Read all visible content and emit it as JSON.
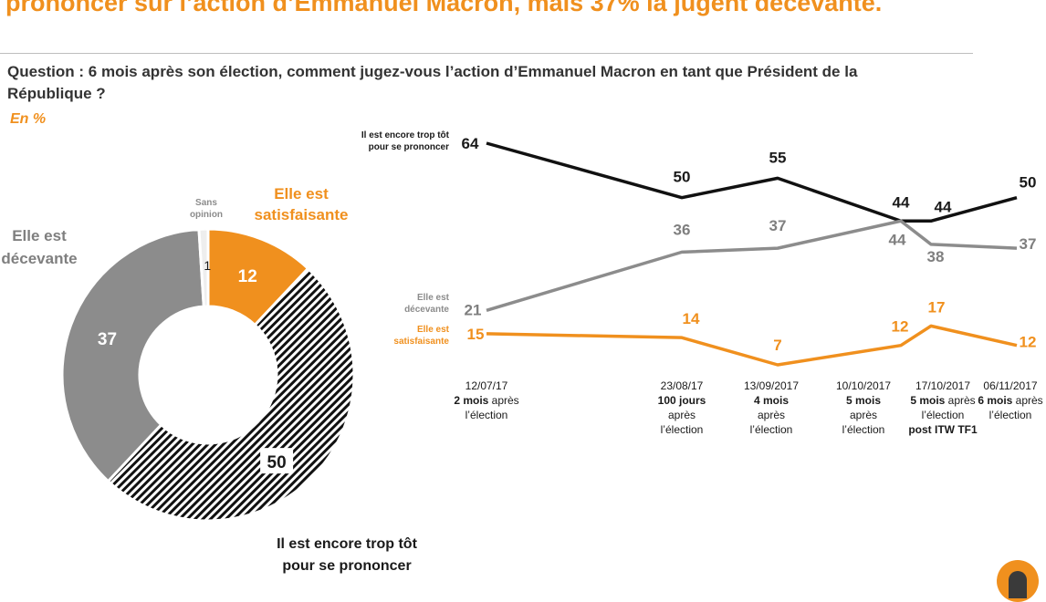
{
  "headline": "prononcer sur l’action d’Emmanuel Macron, mais 37% la jugent décevante.",
  "question": "Question : 6 mois après son élection, comment jugez-vous l’action d’Emmanuel Macron en tant que Président de la République ?",
  "unit": "En %",
  "colors": {
    "orange": "#f0901e",
    "gray": "#8c8c8c",
    "dark": "#1a1a1a"
  },
  "chart_data": [
    {
      "type": "pie",
      "subtype": "donut",
      "slices": [
        {
          "key": "satisfaisante",
          "label": [
            "Elle est",
            "satisfaisante"
          ],
          "value": 12,
          "value_label": "12",
          "color": "#f0901e"
        },
        {
          "key": "trop_tot",
          "label": [
            "Il est encore trop tôt",
            "pour se prononcer"
          ],
          "value": 50,
          "value_label": "50",
          "color": "hatched"
        },
        {
          "key": "decevante",
          "label": [
            "Elle est",
            "décevante"
          ],
          "value": 37,
          "value_label": "37",
          "color": "#8c8c8c"
        },
        {
          "key": "sans_opinion",
          "label": [
            "Sans",
            "opinion"
          ],
          "value": 1,
          "value_label": "1",
          "color": "#eeeeee"
        }
      ]
    },
    {
      "type": "line",
      "ylim": [
        0,
        70
      ],
      "x_labels": [
        {
          "date": "12/07/17",
          "bold": "2 mois",
          "rest": [
            " après",
            "l’élection"
          ]
        },
        {
          "date": "23/08/17",
          "bold": "100 jours",
          "rest": [
            "après",
            "l’élection"
          ]
        },
        {
          "date": "13/09/2017",
          "bold": "4 mois",
          "rest": [
            "après",
            "l’élection"
          ]
        },
        {
          "date": "10/10/2017",
          "bold": "5 mois",
          "rest": [
            "après",
            "l’élection"
          ]
        },
        {
          "date": "17/10/2017",
          "bold": "5 mois",
          "rest": [
            " après",
            "l’élection",
            "post ITW TF1"
          ]
        },
        {
          "date": "06/11/2017",
          "bold": "6 mois",
          "rest": [
            " après",
            "l’élection"
          ]
        }
      ],
      "series": [
        {
          "name": "Il est encore trop tôt pour se prononcer",
          "name_lines": [
            "Il est encore trop tôt",
            "pour se prononcer"
          ],
          "values": [
            64,
            50,
            55,
            44,
            44,
            50
          ],
          "color": "#1a1a1a"
        },
        {
          "name": "Elle est décevante",
          "name_lines": [
            "Elle est",
            "décevante"
          ],
          "values": [
            21,
            36,
            37,
            44,
            38,
            37
          ],
          "color": "#8c8c8c"
        },
        {
          "name": "Elle est satisfaisante",
          "name_lines": [
            "Elle est",
            "satisfaisante"
          ],
          "values": [
            15,
            14,
            7,
            12,
            17,
            12
          ],
          "color": "#f0901e"
        }
      ]
    }
  ]
}
